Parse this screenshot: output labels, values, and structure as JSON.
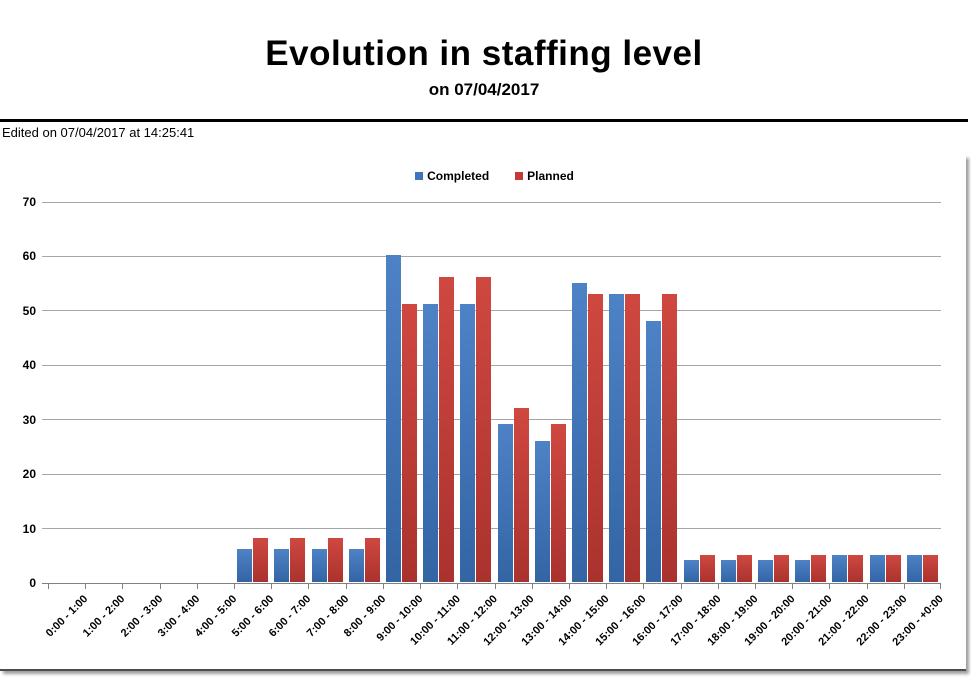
{
  "page": {
    "title": "Evolution in staffing level",
    "subtitle": "on 07/04/2017",
    "edited_note": "Edited on 07/04/2017 at 14:25:41"
  },
  "chart_data": {
    "type": "bar",
    "title": "Evolution in staffing level",
    "subtitle": "on 07/04/2017",
    "categories": [
      "0:00 - 1:00",
      "1:00 - 2:00",
      "2:00 - 3:00",
      "3:00 - 4:00",
      "4:00 - 5:00",
      "5:00 - 6:00",
      "6:00 - 7:00",
      "7:00 - 8:00",
      "8:00 - 9:00",
      "9:00 - 10:00",
      "10:00 - 11:00",
      "11:00 - 12:00",
      "12:00 - 13:00",
      "13:00 - 14:00",
      "14:00 - 15:00",
      "15:00 - 16:00",
      "16:00 - 17:00",
      "17:00 - 18:00",
      "18:00 - 19:00",
      "19:00 - 20:00",
      "20:00 - 21:00",
      "21:00 - 22:00",
      "22:00 - 23:00",
      "23:00 - +0:00"
    ],
    "series": [
      {
        "name": "Completed",
        "color": "#3E74B9",
        "fill_top": "#4e82c6",
        "fill_bottom": "#3365a5",
        "values": [
          0,
          0,
          0,
          0,
          0,
          6,
          6,
          6,
          6,
          60,
          51,
          51,
          29,
          26,
          55,
          53,
          48,
          4,
          4,
          4,
          4,
          5,
          5,
          5
        ]
      },
      {
        "name": "Planned",
        "color": "#C23B38",
        "fill_top": "#cf4840",
        "fill_bottom": "#aa322e",
        "values": [
          0,
          0,
          0,
          0,
          0,
          8,
          8,
          8,
          8,
          51,
          56,
          56,
          32,
          29,
          53,
          53,
          53,
          5,
          5,
          5,
          5,
          5,
          5,
          5
        ]
      }
    ],
    "xlabel": "",
    "ylabel": "",
    "ylim": [
      0,
      70
    ],
    "y_ticks": [
      0,
      10,
      20,
      30,
      40,
      50,
      60,
      70
    ],
    "grid": true,
    "legend_position": "top-center",
    "gridline_color": "#a6a6a6",
    "axis_color": "#808080"
  }
}
